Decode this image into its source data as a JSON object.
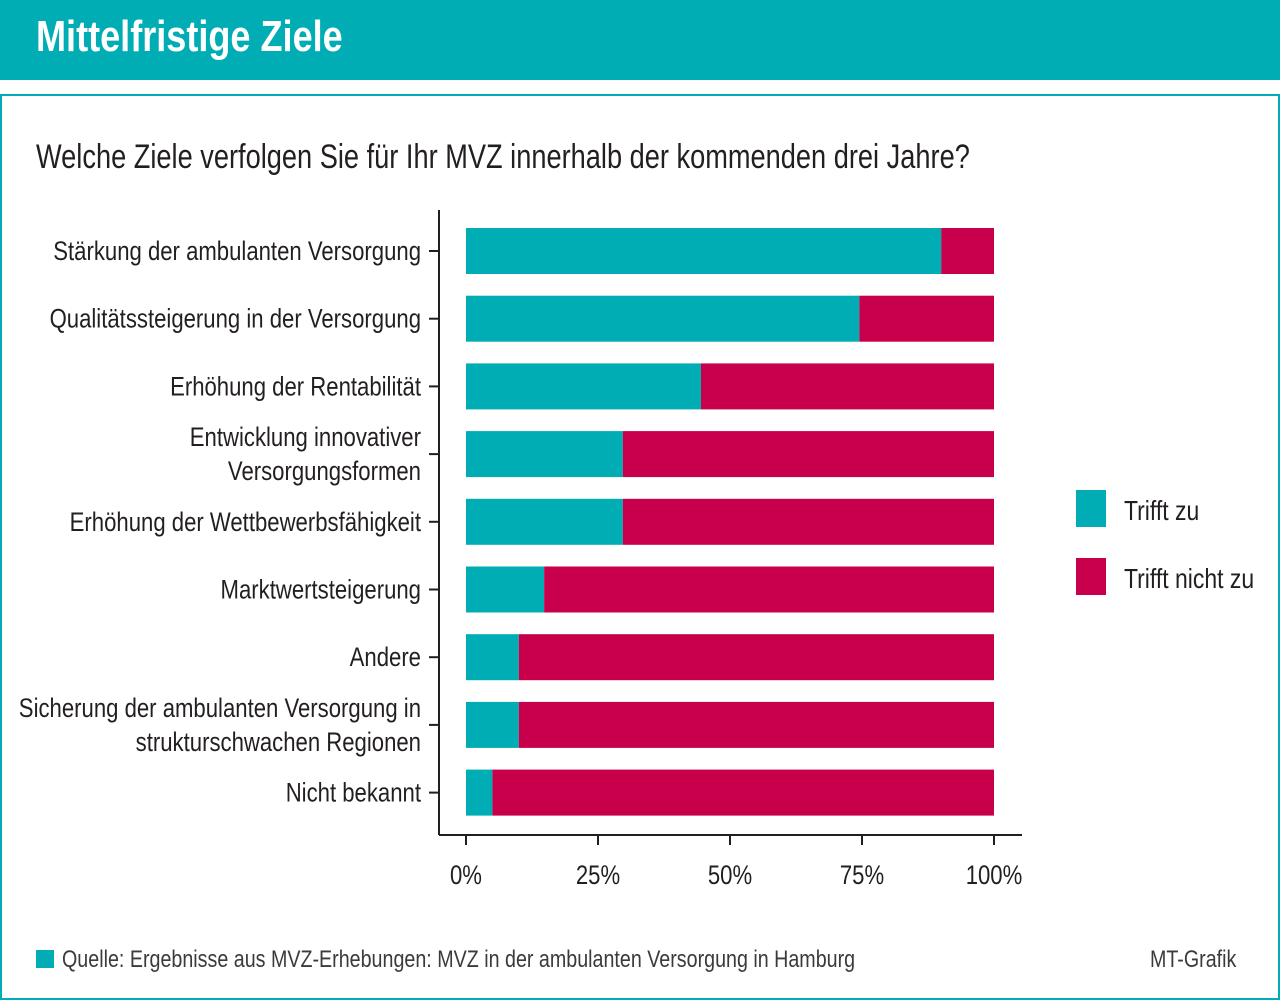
{
  "header": {
    "title": "Mittelfristige Ziele"
  },
  "question": "Welche Ziele verfolgen Sie für Ihr MVZ innerhalb der kommenden drei Jahre?",
  "footer": {
    "source": "Quelle: Ergebnisse aus MVZ-Erhebungen: MVZ in der ambulanten Versorgung in Hamburg",
    "credit": "MT-Grafik"
  },
  "chart_data": {
    "type": "bar",
    "orientation": "horizontal",
    "stacked": true,
    "categories": [
      [
        "Stärkung der ambulanten Versorgung"
      ],
      [
        "Qualitätssteigerung in der Versorgung"
      ],
      [
        "Erhöhung der Rentabilität"
      ],
      [
        "Entwicklung innovativer",
        "Versorgungsformen"
      ],
      [
        "Erhöhung der Wettbewerbsfähigkeit"
      ],
      [
        "Marktwertsteigerung"
      ],
      [
        "Andere"
      ],
      [
        "Sicherung der ambulanten Versorgung in",
        "strukturschwachen Regionen"
      ],
      [
        "Nicht bekannt"
      ]
    ],
    "series": [
      {
        "name": "Trifft zu",
        "color": "#00adb5",
        "values": [
          90,
          74.5,
          44.5,
          29.7,
          29.7,
          14.8,
          10,
          10,
          5
        ]
      },
      {
        "name": "Trifft nicht zu",
        "color": "#c8004b",
        "values": [
          10,
          25.5,
          55.5,
          70.3,
          70.3,
          85.2,
          90,
          90,
          95
        ]
      }
    ],
    "xlim": [
      0,
      100
    ],
    "xticks": [
      "0%",
      "25%",
      "50%",
      "75%",
      "100%"
    ],
    "xlabel": "",
    "ylabel": "",
    "legend": "right",
    "grid": false
  }
}
